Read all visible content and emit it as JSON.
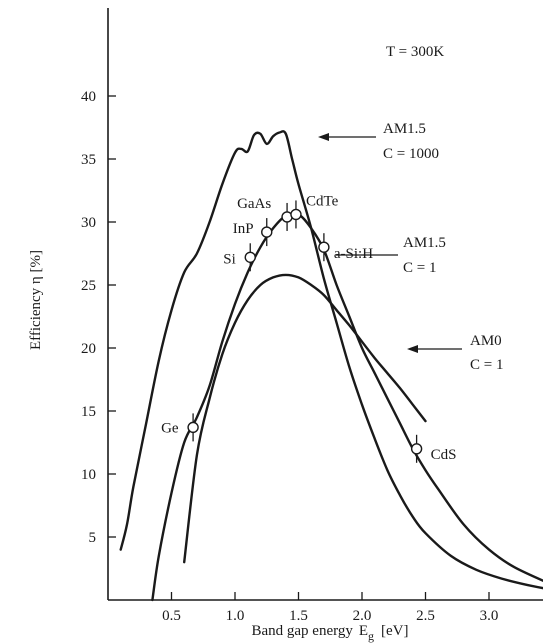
{
  "chart_data": {
    "type": "line",
    "title": "",
    "xlabel": "Band gap energy",
    "xlabel_symbol": "E",
    "xlabel_subscript": "g",
    "xlabel_unit": "[eV]",
    "ylabel": "Efficiency η [%]",
    "xlim": [
      0.0,
      3.5
    ],
    "ylim": [
      0,
      43
    ],
    "x_ticks": [
      0.5,
      1.0,
      1.5,
      2.0,
      2.5,
      3.0
    ],
    "x_tick_labels": [
      "0.5",
      "1.0",
      "1.5",
      "2.0",
      "2.5",
      "3.0"
    ],
    "y_ticks": [
      5,
      10,
      15,
      20,
      25,
      30,
      35,
      40
    ],
    "y_tick_labels": [
      "5",
      "10",
      "15",
      "20",
      "25",
      "30",
      "35",
      "40"
    ],
    "temperature_note": "T = 300K",
    "series": [
      {
        "name_line1": "AM1.5",
        "name_line2": "C = 1000",
        "x": [
          0.1,
          0.15,
          0.2,
          0.3,
          0.4,
          0.5,
          0.6,
          0.7,
          0.8,
          0.9,
          1.0,
          1.05,
          1.1,
          1.15,
          1.2,
          1.25,
          1.3,
          1.35,
          1.4,
          1.45,
          1.5,
          1.6,
          1.7,
          1.8,
          1.9,
          2.0,
          2.1,
          2.2,
          2.3,
          2.4,
          2.5,
          2.7,
          2.9,
          3.1,
          3.3,
          3.5
        ],
        "y": [
          4.0,
          6.0,
          9.0,
          14.0,
          19.0,
          23.0,
          26.0,
          27.5,
          30.0,
          33.0,
          35.5,
          35.8,
          35.6,
          36.9,
          37.0,
          36.2,
          36.8,
          37.1,
          37.0,
          35.0,
          33.0,
          29.5,
          25.5,
          22.0,
          18.5,
          15.5,
          12.8,
          10.3,
          8.3,
          6.6,
          5.3,
          3.5,
          2.4,
          1.7,
          1.2,
          0.8
        ]
      },
      {
        "name_line1": "AM1.5",
        "name_line2": "C = 1",
        "x": [
          0.35,
          0.4,
          0.5,
          0.6,
          0.7,
          0.8,
          0.9,
          1.0,
          1.1,
          1.2,
          1.3,
          1.4,
          1.5,
          1.6,
          1.7,
          1.8,
          1.9,
          2.0,
          2.1,
          2.2,
          2.3,
          2.4,
          2.5,
          2.6,
          2.8,
          3.0,
          3.2,
          3.5
        ],
        "y": [
          0.0,
          3.5,
          8.5,
          12.5,
          14.5,
          17.0,
          20.5,
          23.5,
          26.0,
          28.0,
          29.5,
          30.5,
          30.6,
          29.5,
          27.8,
          25.0,
          22.5,
          20.0,
          18.0,
          16.0,
          14.0,
          12.0,
          10.3,
          8.8,
          6.0,
          4.0,
          2.6,
          1.2
        ]
      },
      {
        "name_line1": "AM0",
        "name_line2": "C = 1",
        "x": [
          0.6,
          0.7,
          0.8,
          0.9,
          1.0,
          1.1,
          1.2,
          1.3,
          1.4,
          1.5,
          1.6,
          1.7,
          1.8,
          1.9,
          2.0,
          2.1,
          2.2,
          2.3,
          2.4,
          2.5
        ],
        "y": [
          3.0,
          11.5,
          16.0,
          19.5,
          22.0,
          23.8,
          25.0,
          25.6,
          25.8,
          25.6,
          25.0,
          24.2,
          23.0,
          21.8,
          20.5,
          19.2,
          18.0,
          16.8,
          15.5,
          14.2
        ]
      }
    ],
    "materials": [
      {
        "label": "Ge",
        "x": 0.67,
        "y": 13.7
      },
      {
        "label": "Si",
        "x": 1.12,
        "y": 27.2
      },
      {
        "label": "InP",
        "x": 1.25,
        "y": 29.2
      },
      {
        "label": "GaAs",
        "x": 1.41,
        "y": 30.4
      },
      {
        "label": "CdTe",
        "x": 1.48,
        "y": 30.6
      },
      {
        "label": "a-Si:H",
        "x": 1.7,
        "y": 28.0
      },
      {
        "label": "CdS",
        "x": 2.43,
        "y": 12.0
      }
    ]
  }
}
